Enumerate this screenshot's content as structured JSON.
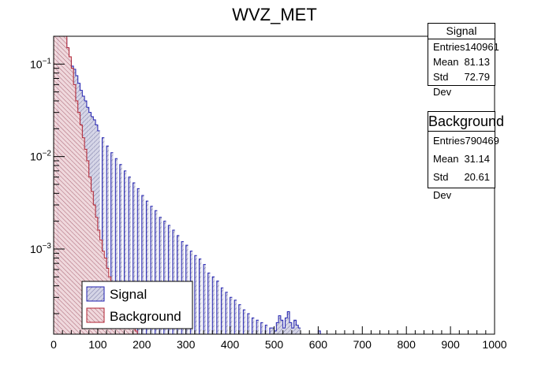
{
  "chart_data": {
    "type": "bar",
    "title": "WVZ_MET",
    "xlabel": "",
    "ylabel": "",
    "xlim": [
      0,
      1000
    ],
    "ylim": [
      0.00012,
      0.2
    ],
    "y_scale": "log",
    "grid": false,
    "bin_width": 5,
    "x_tick_labels": [
      "0",
      "100",
      "200",
      "300",
      "400",
      "500",
      "600",
      "700",
      "800",
      "900",
      "1000"
    ],
    "y_tick_labels": [
      {
        "value": 0.1,
        "label": "10",
        "exp": "−1"
      },
      {
        "value": 0.01,
        "label": "10",
        "exp": "−2"
      },
      {
        "value": 0.001,
        "label": "10",
        "exp": "−3"
      }
    ],
    "legend_position": "bottom-left",
    "series": [
      {
        "name": "Signal",
        "line_color": "#1f1fb0",
        "fill_color": "#c8c8dc",
        "points": [
          [
            10,
            0.2
          ],
          [
            15,
            0.2
          ],
          [
            20,
            0.2
          ],
          [
            25,
            0.19
          ],
          [
            30,
            0.15
          ],
          [
            35,
            0.11
          ],
          [
            40,
            0.095
          ],
          [
            45,
            0.088
          ],
          [
            50,
            0.075
          ],
          [
            55,
            0.062
          ],
          [
            60,
            0.052
          ],
          [
            65,
            0.045
          ],
          [
            70,
            0.04
          ],
          [
            75,
            0.034
          ],
          [
            80,
            0.03
          ],
          [
            85,
            0.027
          ],
          [
            90,
            0.025
          ],
          [
            95,
            0.022
          ],
          [
            100,
            0.019
          ],
          [
            110,
            0.016
          ],
          [
            120,
            0.013
          ],
          [
            130,
            0.011
          ],
          [
            140,
            0.0095
          ],
          [
            150,
            0.0082
          ],
          [
            160,
            0.007
          ],
          [
            170,
            0.006
          ],
          [
            180,
            0.0052
          ],
          [
            190,
            0.0045
          ],
          [
            200,
            0.0038
          ],
          [
            210,
            0.0033
          ],
          [
            220,
            0.0029
          ],
          [
            230,
            0.0026
          ],
          [
            240,
            0.0022
          ],
          [
            250,
            0.002
          ],
          [
            260,
            0.0018
          ],
          [
            270,
            0.0016
          ],
          [
            280,
            0.0014
          ],
          [
            290,
            0.0012
          ],
          [
            300,
            0.0011
          ],
          [
            310,
            0.00095
          ],
          [
            320,
            0.00085
          ],
          [
            330,
            0.00078
          ],
          [
            340,
            0.00068
          ],
          [
            350,
            0.00055
          ],
          [
            360,
            0.0005
          ],
          [
            370,
            0.00045
          ],
          [
            380,
            0.00038
          ],
          [
            390,
            0.00034
          ],
          [
            400,
            0.0003
          ],
          [
            410,
            0.00028
          ],
          [
            420,
            0.00025
          ],
          [
            430,
            0.00022
          ],
          [
            440,
            0.0002
          ],
          [
            450,
            0.00018
          ],
          [
            460,
            0.00017
          ],
          [
            470,
            0.00016
          ],
          [
            480,
            0.00015
          ],
          [
            490,
            0.00014
          ],
          [
            495,
            0.00014
          ],
          [
            500,
            0.00013
          ],
          [
            505,
            0.00016
          ],
          [
            510,
            0.00019
          ],
          [
            515,
            0.00017
          ],
          [
            520,
            0.00014
          ],
          [
            525,
            0.00018
          ],
          [
            530,
            0.00021
          ],
          [
            535,
            0.00016
          ],
          [
            540,
            0.00014
          ],
          [
            545,
            0.00017
          ],
          [
            550,
            0.00015
          ],
          [
            555,
            0.00014
          ],
          [
            600,
            0.00013
          ]
        ]
      },
      {
        "name": "Background",
        "line_color": "#b02030",
        "fill_color": "#ecd0d4",
        "points": [
          [
            0,
            0.2
          ],
          [
            5,
            0.2
          ],
          [
            10,
            0.2
          ],
          [
            15,
            0.2
          ],
          [
            20,
            0.2
          ],
          [
            25,
            0.2
          ],
          [
            30,
            0.15
          ],
          [
            35,
            0.12
          ],
          [
            40,
            0.09
          ],
          [
            45,
            0.06
          ],
          [
            50,
            0.04
          ],
          [
            55,
            0.03
          ],
          [
            60,
            0.022
          ],
          [
            65,
            0.016
          ],
          [
            70,
            0.012
          ],
          [
            75,
            0.009
          ],
          [
            80,
            0.006
          ],
          [
            85,
            0.0042
          ],
          [
            90,
            0.003
          ],
          [
            95,
            0.0022
          ],
          [
            100,
            0.0016
          ],
          [
            105,
            0.00125
          ],
          [
            110,
            0.00095
          ],
          [
            115,
            0.0008
          ],
          [
            120,
            0.00062
          ],
          [
            125,
            0.0005
          ],
          [
            130,
            0.00043
          ],
          [
            135,
            0.00037
          ],
          [
            140,
            0.00033
          ],
          [
            145,
            0.00029
          ],
          [
            150,
            0.00026
          ],
          [
            155,
            0.00022
          ],
          [
            160,
            0.0002
          ],
          [
            165,
            0.00018
          ],
          [
            170,
            0.00016
          ],
          [
            175,
            0.00015
          ],
          [
            180,
            0.00014
          ],
          [
            185,
            0.00013
          ]
        ]
      }
    ]
  },
  "stats_signal": {
    "title": "Signal",
    "entries_label": "Entries",
    "entries": "140961",
    "mean_label": "Mean",
    "mean": "81.13",
    "std_label": "Std Dev",
    "std": "72.79"
  },
  "stats_background": {
    "title": "Background",
    "entries_label": "Entries",
    "entries": "790469",
    "mean_label": "Mean",
    "mean": "31.14",
    "std_label": "Std Dev",
    "std": "20.61"
  }
}
